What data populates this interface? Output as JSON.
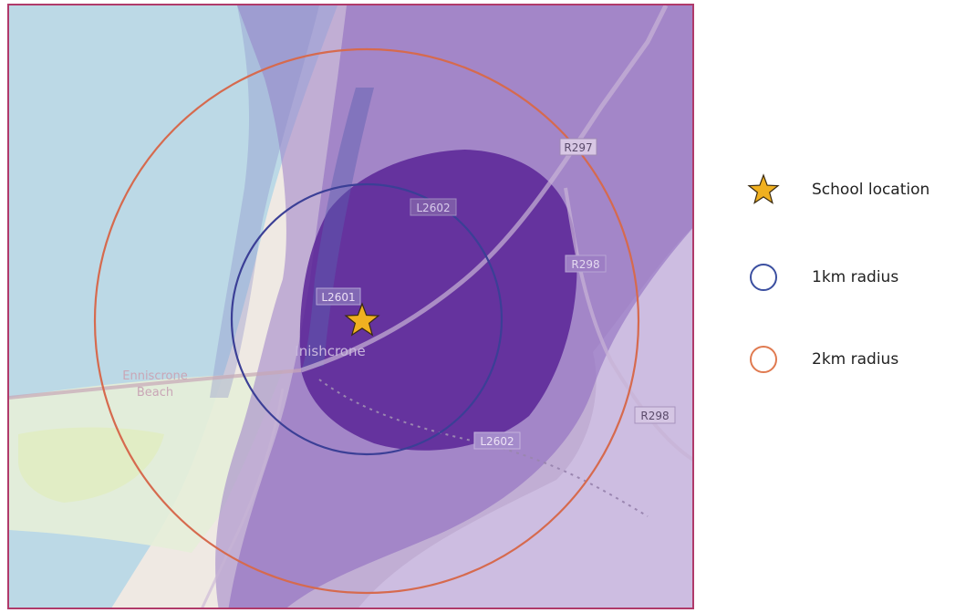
{
  "map": {
    "place_label": "Inishcrone",
    "beach_label_line1": "Enniscrone",
    "beach_label_line2": "Beach",
    "road_labels": [
      "R297",
      "L2602",
      "R298",
      "L2601",
      "R298",
      "L2602"
    ],
    "colors": {
      "sea": "#bcd9e6",
      "land": "#efe9e3",
      "purple_light": "#b59ad3",
      "purple_mid": "#8e6cc1",
      "purple_dark": "#5c2a99",
      "ring_1km": "#3b3f96",
      "ring_2km": "#d66a4e",
      "star": "#f0b020"
    }
  },
  "legend": {
    "items": [
      {
        "label": "School location",
        "icon": "star-icon"
      },
      {
        "label": "1km radius",
        "icon": "blue-circle-icon"
      },
      {
        "label": "2km radius",
        "icon": "orange-circle-icon"
      }
    ]
  }
}
